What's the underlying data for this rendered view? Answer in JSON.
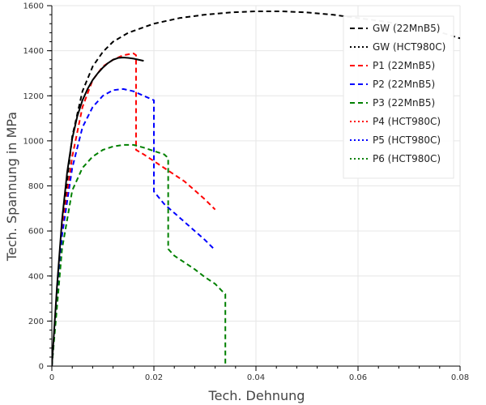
{
  "chart_data": {
    "type": "line",
    "title": "",
    "xlabel": "Tech. Dehnung",
    "ylabel": "Tech. Spannung in MPa",
    "xlim": [
      0,
      0.08
    ],
    "ylim": [
      0,
      1600
    ],
    "xticks": [
      0,
      0.02,
      0.04,
      0.06,
      0.08
    ],
    "xtick_labels": [
      "0",
      "0.02",
      "0.04",
      "0.06",
      "0.08"
    ],
    "yticks": [
      0,
      200,
      400,
      600,
      800,
      1000,
      1200,
      1400,
      1600
    ],
    "ytick_labels": [
      "0",
      "200",
      "400",
      "600",
      "800",
      "1000",
      "1200",
      "1400",
      "1600"
    ],
    "grid": true,
    "legend_position": "top-right",
    "series": [
      {
        "name": "GW (22MnB5)",
        "color": "#000000",
        "dash": "dashed",
        "x": [
          0,
          0.002,
          0.004,
          0.006,
          0.008,
          0.01,
          0.012,
          0.015,
          0.02,
          0.025,
          0.03,
          0.035,
          0.04,
          0.045,
          0.05,
          0.055,
          0.06,
          0.065,
          0.07,
          0.075,
          0.08
        ],
        "y": [
          0,
          620,
          1020,
          1220,
          1330,
          1395,
          1440,
          1480,
          1520,
          1545,
          1560,
          1570,
          1575,
          1575,
          1570,
          1560,
          1545,
          1530,
          1510,
          1490,
          1455
        ]
      },
      {
        "name": "GW  (HCT980C)",
        "color": "#000000",
        "dash": "dotted",
        "x": [],
        "y": []
      },
      {
        "name": "P1 (22MnB5)",
        "color": "#ff0000",
        "dash": "dashed",
        "x": [
          0,
          0.002,
          0.004,
          0.006,
          0.008,
          0.01,
          0.012,
          0.014,
          0.016,
          0.0165,
          0.0165,
          0.018,
          0.02,
          0.022,
          0.024,
          0.026,
          0.028,
          0.03,
          0.032
        ],
        "y": [
          0,
          600,
          930,
          1150,
          1270,
          1330,
          1360,
          1380,
          1388,
          1380,
          960,
          940,
          910,
          880,
          850,
          820,
          780,
          740,
          695
        ]
      },
      {
        "name": "P2 (22MnB5)",
        "color": "#0000ff",
        "dash": "dashed",
        "x": [
          0,
          0.002,
          0.004,
          0.006,
          0.008,
          0.01,
          0.012,
          0.014,
          0.016,
          0.018,
          0.019,
          0.02,
          0.02,
          0.022,
          0.024,
          0.026,
          0.028,
          0.03,
          0.032
        ],
        "y": [
          0,
          580,
          880,
          1060,
          1150,
          1200,
          1225,
          1230,
          1220,
          1200,
          1190,
          1180,
          775,
          720,
          680,
          640,
          600,
          560,
          515
        ]
      },
      {
        "name": "P3 (22MnB5)",
        "color": "#008000",
        "dash": "dashed",
        "x": [
          0,
          0.002,
          0.004,
          0.006,
          0.008,
          0.01,
          0.012,
          0.014,
          0.016,
          0.018,
          0.02,
          0.022,
          0.0225,
          0.0228,
          0.0228,
          0.024,
          0.026,
          0.028,
          0.03,
          0.032,
          0.0335,
          0.034,
          0.034
        ],
        "y": [
          0,
          520,
          780,
          880,
          930,
          960,
          975,
          982,
          982,
          970,
          955,
          940,
          930,
          920,
          520,
          490,
          460,
          430,
          395,
          365,
          330,
          320,
          0
        ]
      },
      {
        "name": "P4 (HCT980C)",
        "color": "#ff0000",
        "dash": "dotted",
        "x": [],
        "y": []
      },
      {
        "name": "P5 (HCT980C)",
        "color": "#0000ff",
        "dash": "dotted",
        "x": [],
        "y": []
      },
      {
        "name": "P6 (HCT980C)",
        "color": "#008000",
        "dash": "dotted",
        "x": [],
        "y": []
      },
      {
        "name": "",
        "color": "#000000",
        "dash": "solid",
        "x": [
          0,
          0.001,
          0.002,
          0.003,
          0.004,
          0.005,
          0.006,
          0.007,
          0.008,
          0.009,
          0.01,
          0.011,
          0.012,
          0.013,
          0.014,
          0.015,
          0.016,
          0.017,
          0.018
        ],
        "y": [
          0,
          350,
          650,
          860,
          1010,
          1110,
          1180,
          1230,
          1270,
          1300,
          1325,
          1345,
          1360,
          1368,
          1370,
          1368,
          1365,
          1360,
          1355
        ]
      }
    ]
  }
}
